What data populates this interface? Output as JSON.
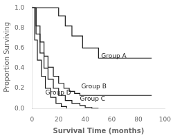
{
  "chart_data": {
    "type": "step",
    "xlabel": "Survival Time (months)",
    "ylabel": "Proportion Surviving",
    "xlim": [
      0,
      100
    ],
    "ylim": [
      0,
      1.02
    ],
    "xticks": [
      0,
      20,
      40,
      60,
      80,
      100
    ],
    "yticks": [
      {
        "value": 0.0,
        "label": "0.0"
      },
      0.2,
      0.4,
      0.6,
      0.8,
      {
        "value": 1.0,
        "label": "1.0"
      }
    ],
    "grid": false,
    "series": [
      {
        "color": "#1a1a1a",
        "x": [
          0,
          20,
          25,
          30,
          38,
          50,
          90
        ],
        "values": [
          1.0,
          0.92,
          0.82,
          0.72,
          0.6,
          0.5,
          0.5
        ]
      },
      {
        "color": "#1a1a1a",
        "x": [
          0,
          3,
          6,
          9,
          12,
          16,
          20,
          24,
          28,
          32,
          36,
          40,
          55,
          90
        ],
        "values": [
          1.0,
          0.82,
          0.66,
          0.52,
          0.41,
          0.32,
          0.25,
          0.2,
          0.17,
          0.15,
          0.13,
          0.13,
          0.13,
          0.13
        ]
      },
      {
        "color": "#1a1a1a",
        "x": [
          0,
          3,
          6,
          9,
          12,
          16,
          20,
          25,
          30,
          36,
          40,
          45,
          50
        ],
        "values": [
          1.0,
          0.74,
          0.55,
          0.4,
          0.29,
          0.2,
          0.13,
          0.08,
          0.05,
          0.03,
          0.01,
          0.0,
          0.0
        ]
      },
      {
        "color": "#1a1a1a",
        "x": [
          0,
          2,
          4,
          7,
          10,
          14,
          18,
          22,
          26
        ],
        "values": [
          1.0,
          0.68,
          0.48,
          0.32,
          0.2,
          0.11,
          0.05,
          0.02,
          0.0
        ]
      }
    ],
    "annotations": [
      {
        "text": "Group A",
        "x": 52,
        "y": 0.5,
        "color": "#1a1a1a"
      },
      {
        "text": "Group B",
        "x": 37,
        "y": 0.2,
        "color": "#1a1a1a"
      },
      {
        "text": "Group C",
        "x": 36,
        "y": 0.08,
        "color": "#1a1a1a"
      },
      {
        "text": "Group D",
        "x": 10,
        "y": 0.14,
        "color": "#1a1a1a"
      }
    ]
  }
}
